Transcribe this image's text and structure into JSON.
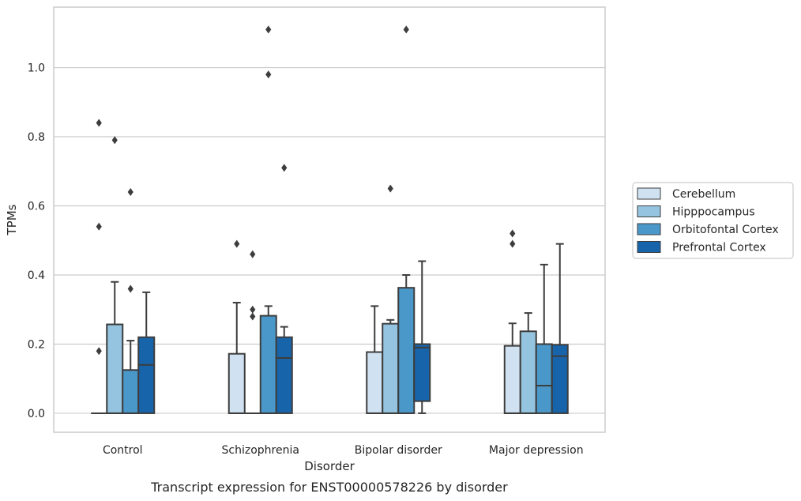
{
  "chart_data": {
    "type": "box",
    "xlabel": "Disorder",
    "ylabel": "TPMs",
    "caption": "Transcript expression for ENST00000578226 by disorder",
    "ylim": [
      -0.055,
      1.175
    ],
    "yticks": [
      0.0,
      0.2,
      0.4,
      0.6,
      0.8,
      1.0
    ],
    "ytick_labels": [
      "0.0",
      "0.2",
      "0.4",
      "0.6",
      "0.8",
      "1.0"
    ],
    "grid": "horizontal",
    "legend_position": "right",
    "categories": [
      "Control",
      "Schizophrenia",
      "Bipolar disorder",
      "Major depression"
    ],
    "series": [
      {
        "name": "Cerebellum",
        "color": "#d0e1f2",
        "boxes": [
          {
            "q1": 0.0,
            "median": 0.0,
            "q3": 0.0,
            "whislo": 0.0,
            "whishi": 0.0,
            "fliers": [
              0.18,
              0.54,
              0.84
            ]
          },
          {
            "q1": 0.0,
            "median": 0.0,
            "q3": 0.172,
            "whislo": 0.0,
            "whishi": 0.32,
            "fliers": [
              0.49
            ]
          },
          {
            "q1": 0.0,
            "median": 0.0,
            "q3": 0.177,
            "whislo": 0.0,
            "whishi": 0.31,
            "fliers": []
          },
          {
            "q1": 0.0,
            "median": 0.0,
            "q3": 0.195,
            "whislo": 0.0,
            "whishi": 0.26,
            "fliers": [
              0.49,
              0.52
            ]
          }
        ]
      },
      {
        "name": "Hipppocampus",
        "color": "#94c4df",
        "boxes": [
          {
            "q1": 0.0,
            "median": 0.0,
            "q3": 0.257,
            "whislo": 0.0,
            "whishi": 0.38,
            "fliers": [
              0.79
            ]
          },
          {
            "q1": 0.0,
            "median": 0.0,
            "q3": 0.0,
            "whislo": 0.0,
            "whishi": 0.0,
            "fliers": [
              0.28,
              0.3,
              0.46
            ]
          },
          {
            "q1": 0.0,
            "median": 0.0,
            "q3": 0.259,
            "whislo": 0.0,
            "whishi": 0.27,
            "fliers": [
              0.65
            ]
          },
          {
            "q1": 0.0,
            "median": 0.0,
            "q3": 0.237,
            "whislo": 0.0,
            "whishi": 0.29,
            "fliers": []
          }
        ]
      },
      {
        "name": "Orbitofontal Cortex",
        "color": "#4a98c9",
        "boxes": [
          {
            "q1": 0.0,
            "median": 0.0,
            "q3": 0.125,
            "whislo": 0.0,
            "whishi": 0.21,
            "fliers": [
              0.36,
              0.64
            ]
          },
          {
            "q1": 0.0,
            "median": 0.0,
            "q3": 0.282,
            "whislo": 0.0,
            "whishi": 0.31,
            "fliers": [
              0.98,
              1.11
            ]
          },
          {
            "q1": 0.0,
            "median": 0.0,
            "q3": 0.363,
            "whislo": 0.0,
            "whishi": 0.4,
            "fliers": [
              1.11
            ]
          },
          {
            "q1": 0.0,
            "median": 0.08,
            "q3": 0.2,
            "whislo": 0.0,
            "whishi": 0.43,
            "fliers": []
          }
        ]
      },
      {
        "name": "Prefrontal Cortex",
        "color": "#1764ab",
        "boxes": [
          {
            "q1": 0.0,
            "median": 0.14,
            "q3": 0.22,
            "whislo": 0.0,
            "whishi": 0.35,
            "fliers": []
          },
          {
            "q1": 0.0,
            "median": 0.16,
            "q3": 0.22,
            "whislo": 0.0,
            "whishi": 0.25,
            "fliers": [
              0.71
            ]
          },
          {
            "q1": 0.035,
            "median": 0.19,
            "q3": 0.2,
            "whislo": 0.0,
            "whishi": 0.44,
            "fliers": []
          },
          {
            "q1": 0.0,
            "median": 0.165,
            "q3": 0.198,
            "whislo": 0.0,
            "whishi": 0.49,
            "fliers": []
          }
        ]
      }
    ]
  }
}
